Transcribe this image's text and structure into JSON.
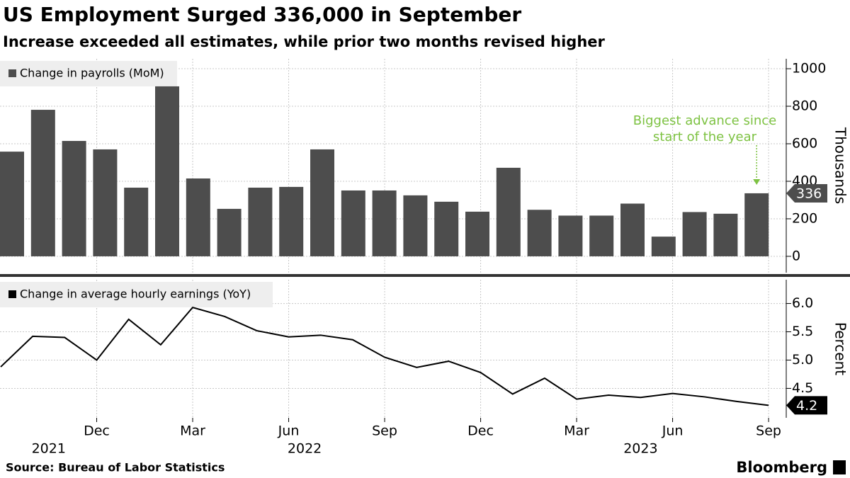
{
  "title": "US Employment Surged 336,000 in September",
  "subtitle": "Increase exceeded all estimates, while prior two months revised higher",
  "source": "Source: Bureau of Labor Statistics",
  "brand": "Bloomberg",
  "chart_data": [
    {
      "type": "bar",
      "series": [
        {
          "name": "Change in payrolls (MoM)",
          "color": "#4d4d4d",
          "values": [
            558,
            781,
            615,
            570,
            366,
            906,
            415,
            253,
            366,
            370,
            570,
            351,
            351,
            325,
            291,
            238,
            472,
            248,
            217,
            217,
            281,
            105,
            236,
            227,
            336
          ]
        }
      ],
      "x": [
        "2021-09",
        "2021-10",
        "2021-11",
        "2021-12",
        "2022-01",
        "2022-02",
        "2022-03",
        "2022-04",
        "2022-05",
        "2022-06",
        "2022-07",
        "2022-08",
        "2022-09",
        "2022-10",
        "2022-11",
        "2022-12",
        "2023-01",
        "2023-02",
        "2023-03",
        "2023-04",
        "2023-05",
        "2023-06",
        "2023-07",
        "2023-08",
        "2023-09"
      ],
      "y_label": "Thousands",
      "ylim": [
        -87,
        1053
      ],
      "yticks": [
        0,
        200,
        400,
        600,
        800,
        1000
      ],
      "annotation": {
        "lines": [
          "Biggest advance since",
          "start of the year"
        ],
        "color": "#7dc242"
      },
      "grid": true
    },
    {
      "type": "line",
      "series": [
        {
          "name": "Change in average hourly earnings (YoY)",
          "color": "#000000",
          "values": [
            4.88,
            5.42,
            5.4,
            5.0,
            5.72,
            5.27,
            5.93,
            5.77,
            5.52,
            5.41,
            5.44,
            5.36,
            5.05,
            4.87,
            4.98,
            4.78,
            4.4,
            4.68,
            4.31,
            4.38,
            4.34,
            4.41,
            4.35,
            4.27,
            4.2
          ]
        }
      ],
      "x": [
        "2021-09",
        "2021-10",
        "2021-11",
        "2021-12",
        "2022-01",
        "2022-02",
        "2022-03",
        "2022-04",
        "2022-05",
        "2022-06",
        "2022-07",
        "2022-08",
        "2022-09",
        "2022-10",
        "2022-11",
        "2022-12",
        "2023-01",
        "2023-02",
        "2023-03",
        "2023-04",
        "2023-05",
        "2023-06",
        "2023-07",
        "2023-08",
        "2023-09"
      ],
      "xticks": [
        {
          "value": "2021-12",
          "label": "Dec"
        },
        {
          "value": "2022-03",
          "label": "Mar"
        },
        {
          "value": "2022-06",
          "label": "Jun"
        },
        {
          "value": "2022-09",
          "label": "Sep"
        },
        {
          "value": "2022-12",
          "label": "Dec"
        },
        {
          "value": "2023-03",
          "label": "Mar"
        },
        {
          "value": "2023-06",
          "label": "Jun"
        },
        {
          "value": "2023-09",
          "label": "Sep"
        }
      ],
      "year_labels": [
        "2021",
        "2022",
        "2023"
      ],
      "y_label": "Percent",
      "ylim": [
        3.98,
        6.42
      ],
      "yticks": [
        4.5,
        {
          "value": 5.0,
          "label": "5.0"
        },
        5.5,
        {
          "value": 6.0,
          "label": "6.0"
        }
      ],
      "grid": true
    }
  ]
}
